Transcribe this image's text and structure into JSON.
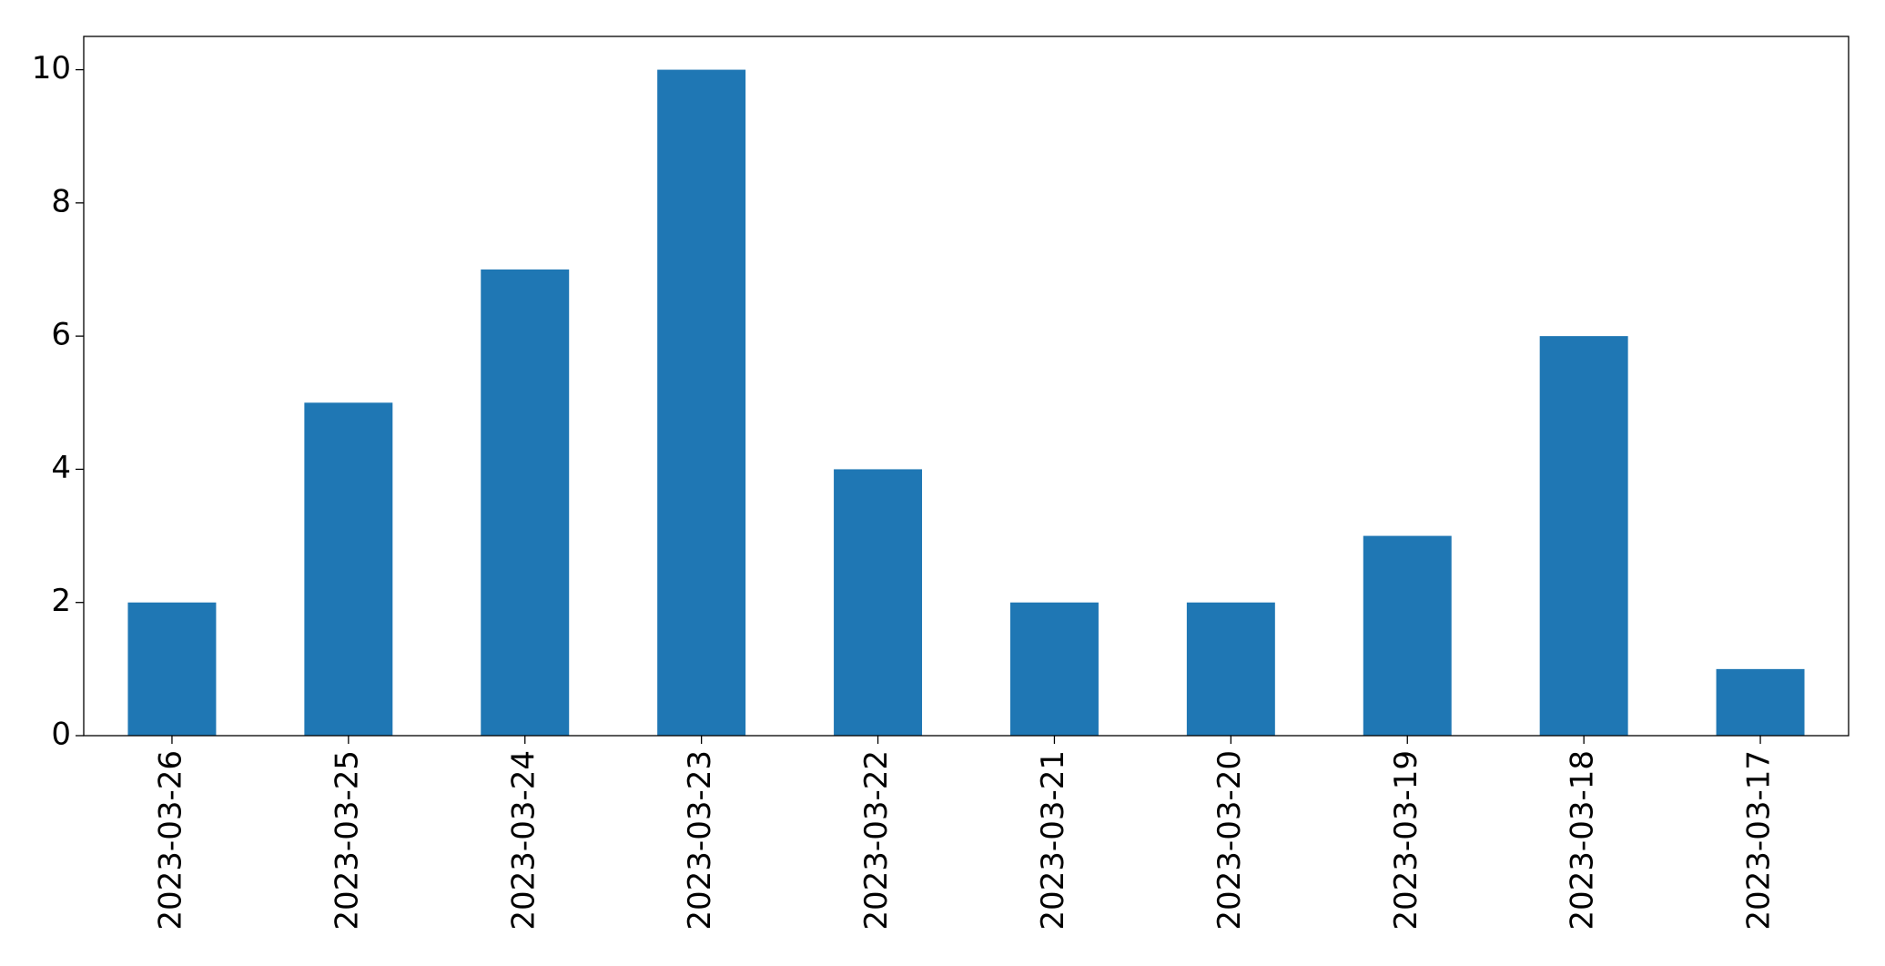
{
  "chart_data": {
    "type": "bar",
    "categories": [
      "2023-03-26",
      "2023-03-25",
      "2023-03-24",
      "2023-03-23",
      "2023-03-22",
      "2023-03-21",
      "2023-03-20",
      "2023-03-19",
      "2023-03-18",
      "2023-03-17"
    ],
    "values": [
      2,
      5,
      7,
      10,
      4,
      2,
      2,
      3,
      6,
      1
    ],
    "color": "#1f77b4",
    "ylim": [
      0,
      10.5
    ],
    "yticks": [
      0,
      2,
      4,
      6,
      8,
      10
    ],
    "grid": false
  }
}
